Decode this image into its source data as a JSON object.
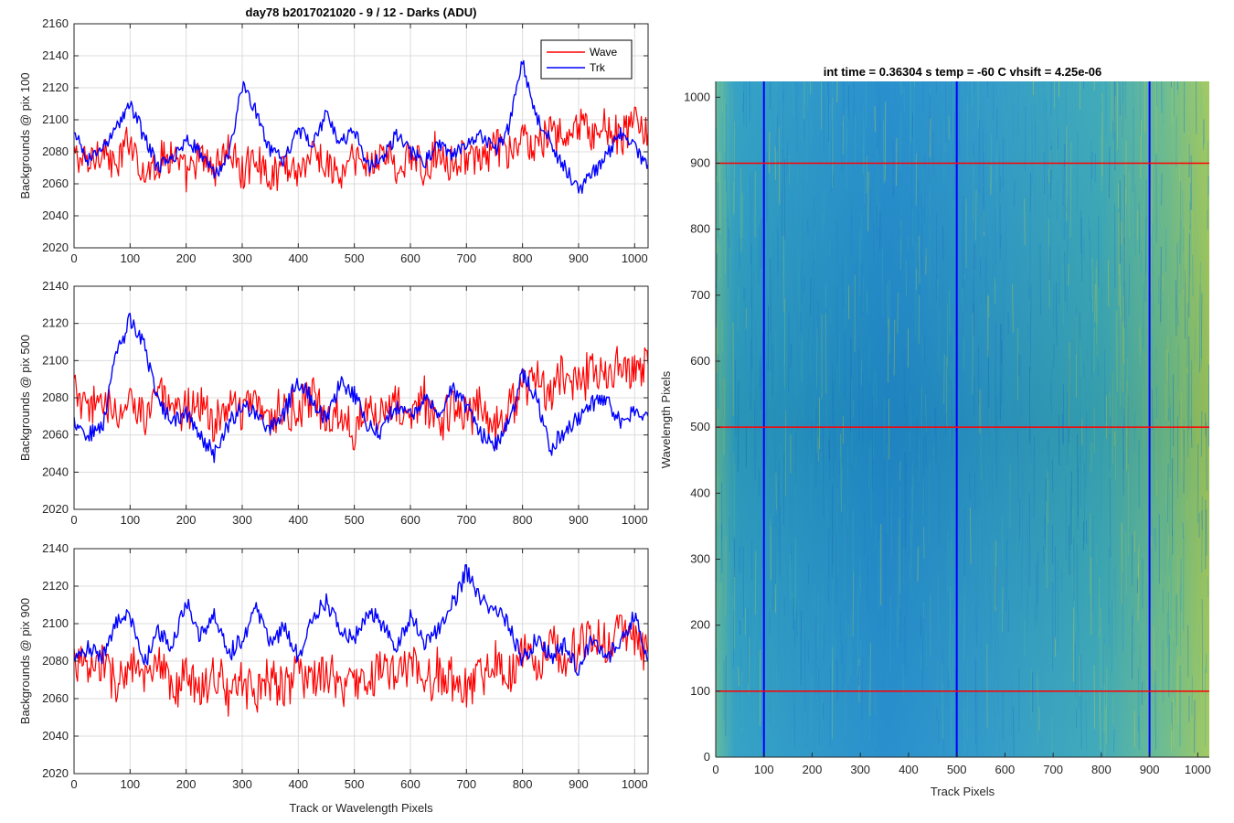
{
  "figure": {
    "title": "day78 b2017021020 - 9 / 12 - Darks (ADU)",
    "xlabel": "Track or Wavelength Pixels"
  },
  "colors": {
    "wave": "#ff0000",
    "trk": "#0000ff",
    "grid": "#dcdcdc",
    "axis": "#262626",
    "image_low": "#1a7fc8",
    "image_mid": "#2fa3b8",
    "image_high": "#a8c94a"
  },
  "chart_data": [
    {
      "type": "line",
      "ylabel": "Backgrounds @ pix 100",
      "xlim": [
        0,
        1024
      ],
      "ylim": [
        2020,
        2160
      ],
      "xticks": [
        0,
        100,
        200,
        300,
        400,
        500,
        600,
        700,
        800,
        900,
        1000
      ],
      "yticks": [
        2020,
        2040,
        2060,
        2080,
        2100,
        2120,
        2140,
        2160
      ],
      "grid": true,
      "legend": {
        "location": "top-right",
        "entries": [
          "Wave",
          "Trk"
        ]
      },
      "series": [
        {
          "name": "Wave",
          "color": "#ff0000",
          "x": [
            0,
            25,
            50,
            75,
            100,
            125,
            150,
            175,
            200,
            225,
            250,
            275,
            300,
            325,
            350,
            375,
            400,
            425,
            450,
            475,
            500,
            525,
            550,
            575,
            600,
            625,
            650,
            675,
            700,
            725,
            750,
            775,
            800,
            825,
            850,
            875,
            900,
            925,
            950,
            975,
            1000,
            1024
          ],
          "y": [
            2078,
            2072,
            2084,
            2068,
            2090,
            2066,
            2074,
            2080,
            2064,
            2076,
            2070,
            2082,
            2066,
            2078,
            2062,
            2074,
            2068,
            2080,
            2072,
            2064,
            2076,
            2070,
            2082,
            2068,
            2078,
            2066,
            2084,
            2072,
            2080,
            2070,
            2086,
            2076,
            2090,
            2082,
            2094,
            2086,
            2098,
            2090,
            2096,
            2088,
            2100,
            2092
          ]
        },
        {
          "name": "Trk",
          "color": "#0000ff",
          "x": [
            0,
            25,
            50,
            75,
            100,
            125,
            150,
            175,
            200,
            225,
            250,
            275,
            300,
            325,
            350,
            375,
            400,
            425,
            450,
            475,
            500,
            525,
            550,
            575,
            600,
            625,
            650,
            675,
            700,
            725,
            750,
            775,
            800,
            825,
            850,
            875,
            900,
            925,
            950,
            975,
            1000,
            1024
          ],
          "y": [
            2090,
            2075,
            2082,
            2095,
            2110,
            2090,
            2070,
            2075,
            2088,
            2080,
            2066,
            2076,
            2122,
            2105,
            2080,
            2075,
            2094,
            2085,
            2104,
            2085,
            2095,
            2070,
            2078,
            2090,
            2080,
            2074,
            2085,
            2078,
            2085,
            2092,
            2080,
            2094,
            2138,
            2100,
            2086,
            2070,
            2056,
            2066,
            2078,
            2092,
            2082,
            2072
          ]
        }
      ]
    },
    {
      "type": "line",
      "ylabel": "Backgrounds @ pix 500",
      "xlim": [
        0,
        1024
      ],
      "ylim": [
        2020,
        2140
      ],
      "xticks": [
        0,
        100,
        200,
        300,
        400,
        500,
        600,
        700,
        800,
        900,
        1000
      ],
      "yticks": [
        2020,
        2040,
        2060,
        2080,
        2100,
        2120,
        2140
      ],
      "grid": true,
      "series": [
        {
          "name": "Wave",
          "color": "#ff0000",
          "x": [
            0,
            25,
            50,
            75,
            100,
            125,
            150,
            175,
            200,
            225,
            250,
            275,
            300,
            325,
            350,
            375,
            400,
            425,
            450,
            475,
            500,
            525,
            550,
            575,
            600,
            625,
            650,
            675,
            700,
            725,
            750,
            775,
            800,
            825,
            850,
            875,
            900,
            925,
            950,
            975,
            1000,
            1024
          ],
          "y": [
            2085,
            2070,
            2082,
            2066,
            2078,
            2072,
            2086,
            2068,
            2074,
            2080,
            2064,
            2078,
            2070,
            2084,
            2066,
            2076,
            2070,
            2080,
            2068,
            2074,
            2064,
            2078,
            2070,
            2076,
            2068,
            2080,
            2066,
            2074,
            2070,
            2078,
            2064,
            2076,
            2084,
            2090,
            2082,
            2094,
            2088,
            2096,
            2090,
            2100,
            2092,
            2098
          ]
        },
        {
          "name": "Trk",
          "color": "#0000ff",
          "x": [
            0,
            25,
            50,
            75,
            100,
            125,
            150,
            175,
            200,
            225,
            250,
            275,
            300,
            325,
            350,
            375,
            400,
            425,
            450,
            475,
            500,
            525,
            550,
            575,
            600,
            625,
            650,
            675,
            700,
            725,
            750,
            775,
            800,
            825,
            850,
            875,
            900,
            925,
            950,
            975,
            1000,
            1024
          ],
          "y": [
            2068,
            2060,
            2064,
            2102,
            2122,
            2110,
            2078,
            2066,
            2072,
            2060,
            2050,
            2066,
            2076,
            2070,
            2064,
            2072,
            2090,
            2078,
            2068,
            2088,
            2082,
            2066,
            2062,
            2076,
            2070,
            2080,
            2072,
            2084,
            2076,
            2060,
            2054,
            2066,
            2092,
            2080,
            2052,
            2062,
            2070,
            2076,
            2080,
            2066,
            2074,
            2070
          ]
        }
      ]
    },
    {
      "type": "line",
      "ylabel": "Backgrounds @ pix 900",
      "xlabel": "Track or Wavelength Pixels",
      "xlim": [
        0,
        1024
      ],
      "ylim": [
        2020,
        2140
      ],
      "xticks": [
        0,
        100,
        200,
        300,
        400,
        500,
        600,
        700,
        800,
        900,
        1000
      ],
      "yticks": [
        2020,
        2040,
        2060,
        2080,
        2100,
        2120,
        2140
      ],
      "grid": true,
      "series": [
        {
          "name": "Wave",
          "color": "#ff0000",
          "x": [
            0,
            25,
            50,
            75,
            100,
            125,
            150,
            175,
            200,
            225,
            250,
            275,
            300,
            325,
            350,
            375,
            400,
            425,
            450,
            475,
            500,
            525,
            550,
            575,
            600,
            625,
            650,
            675,
            700,
            725,
            750,
            775,
            800,
            825,
            850,
            875,
            900,
            925,
            950,
            975,
            1000,
            1024
          ],
          "y": [
            2082,
            2074,
            2080,
            2068,
            2078,
            2070,
            2076,
            2064,
            2072,
            2066,
            2074,
            2062,
            2070,
            2064,
            2072,
            2066,
            2076,
            2068,
            2074,
            2064,
            2070,
            2068,
            2078,
            2072,
            2080,
            2066,
            2076,
            2070,
            2064,
            2074,
            2080,
            2072,
            2086,
            2078,
            2090,
            2082,
            2088,
            2094,
            2086,
            2098,
            2092,
            2084
          ]
        },
        {
          "name": "Trk",
          "color": "#0000ff",
          "x": [
            0,
            25,
            50,
            75,
            100,
            125,
            150,
            175,
            200,
            225,
            250,
            275,
            300,
            325,
            350,
            375,
            400,
            425,
            450,
            475,
            500,
            525,
            550,
            575,
            600,
            625,
            650,
            675,
            700,
            725,
            750,
            775,
            800,
            825,
            850,
            875,
            900,
            925,
            950,
            975,
            1000,
            1024
          ],
          "y": [
            2080,
            2088,
            2082,
            2100,
            2104,
            2078,
            2096,
            2088,
            2112,
            2092,
            2104,
            2084,
            2092,
            2108,
            2090,
            2098,
            2082,
            2102,
            2112,
            2098,
            2092,
            2108,
            2100,
            2088,
            2104,
            2090,
            2096,
            2110,
            2128,
            2114,
            2108,
            2100,
            2080,
            2092,
            2082,
            2088,
            2076,
            2092,
            2082,
            2090,
            2104,
            2080
          ]
        }
      ]
    },
    {
      "type": "heatmap",
      "title": "int time = 0.36304 s   temp = -60 C   vhsift = 4.25e-06",
      "xlabel": "Track Pixels",
      "ylabel": "Wavelength Pixels",
      "xlim": [
        0,
        1024
      ],
      "ylim": [
        0,
        1024
      ],
      "xticks": [
        0,
        100,
        200,
        300,
        400,
        500,
        600,
        700,
        800,
        900,
        1000
      ],
      "yticks": [
        0,
        100,
        200,
        300,
        400,
        500,
        600,
        700,
        800,
        900,
        1000
      ],
      "vertical_markers": {
        "color": "#0000ff",
        "x": [
          100,
          500,
          900
        ]
      },
      "horizontal_markers": {
        "color": "#ff0000",
        "y": [
          100,
          500,
          900
        ]
      }
    }
  ]
}
